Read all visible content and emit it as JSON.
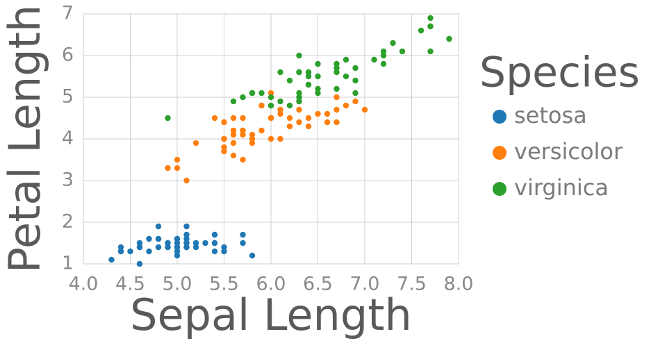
{
  "chart_data": {
    "type": "scatter",
    "x_label": "Sepal Length",
    "y_label": "Petal Length",
    "legend_title": "Species",
    "xlim": [
      4,
      8
    ],
    "ylim": [
      1,
      7
    ],
    "xticks": [
      {
        "value": 4,
        "label": "4.0"
      },
      {
        "value": 4.5,
        "label": "4.5"
      },
      {
        "value": 5,
        "label": "5.0"
      },
      {
        "value": 5.5,
        "label": "5.5"
      },
      {
        "value": 6,
        "label": "6.0"
      },
      {
        "value": 6.5,
        "label": "6.5"
      },
      {
        "value": 7,
        "label": "7.0"
      },
      {
        "value": 7.5,
        "label": "7.5"
      },
      {
        "value": 8,
        "label": "8.0"
      }
    ],
    "yticks": [
      1,
      2,
      3,
      4,
      5,
      6,
      7
    ],
    "grid": true,
    "legend": "right",
    "series": [
      {
        "name": "setosa",
        "color": "#1f77b4",
        "x": [
          5.1,
          4.9,
          4.7,
          4.6,
          5.0,
          5.4,
          4.6,
          5.0,
          4.4,
          4.9,
          5.4,
          4.8,
          4.8,
          4.3,
          5.8,
          5.7,
          5.4,
          5.1,
          5.7,
          5.1,
          5.4,
          5.1,
          4.6,
          5.1,
          4.8,
          5.0,
          5.0,
          5.2,
          5.2,
          4.7,
          4.8,
          5.4,
          5.2,
          5.5,
          4.9,
          5.0,
          5.5,
          4.9,
          4.4,
          5.1,
          5.0,
          4.5,
          4.4,
          5.0,
          5.1,
          4.8,
          5.1,
          4.6,
          5.3,
          5.0
        ],
        "values": [
          1.4,
          1.4,
          1.3,
          1.5,
          1.4,
          1.7,
          1.4,
          1.5,
          1.4,
          1.5,
          1.5,
          1.6,
          1.4,
          1.1,
          1.2,
          1.5,
          1.3,
          1.4,
          1.7,
          1.5,
          1.7,
          1.5,
          1.0,
          1.7,
          1.9,
          1.6,
          1.6,
          1.5,
          1.4,
          1.6,
          1.6,
          1.5,
          1.5,
          1.4,
          1.5,
          1.2,
          1.3,
          1.4,
          1.3,
          1.5,
          1.3,
          1.3,
          1.3,
          1.6,
          1.9,
          1.4,
          1.6,
          1.4,
          1.5,
          1.4
        ]
      },
      {
        "name": "versicolor",
        "color": "#ff7f0e",
        "x": [
          7.0,
          6.4,
          6.9,
          5.5,
          6.5,
          5.7,
          6.3,
          4.9,
          6.6,
          5.2,
          5.0,
          5.9,
          6.0,
          6.1,
          5.6,
          6.7,
          5.6,
          5.8,
          6.2,
          5.6,
          5.9,
          6.1,
          6.3,
          6.1,
          6.4,
          6.6,
          6.8,
          6.7,
          6.0,
          5.7,
          5.5,
          5.5,
          5.8,
          6.0,
          5.4,
          6.0,
          6.7,
          6.3,
          5.6,
          5.5,
          5.5,
          6.1,
          5.8,
          5.0,
          5.6,
          5.7,
          5.7,
          6.2,
          5.1,
          5.7
        ],
        "values": [
          4.7,
          4.5,
          4.9,
          4.0,
          4.6,
          4.5,
          4.7,
          3.3,
          4.6,
          3.9,
          3.5,
          4.2,
          4.0,
          4.7,
          3.6,
          4.4,
          4.5,
          4.1,
          4.5,
          3.9,
          4.8,
          4.0,
          4.9,
          4.7,
          4.3,
          4.4,
          4.8,
          5.0,
          4.5,
          3.5,
          3.8,
          3.7,
          3.9,
          5.1,
          4.5,
          4.5,
          4.7,
          4.4,
          4.1,
          4.0,
          4.4,
          4.6,
          4.0,
          3.3,
          4.2,
          4.2,
          4.2,
          4.3,
          3.0,
          4.1
        ]
      },
      {
        "name": "virginica",
        "color": "#2ca02c",
        "x": [
          6.3,
          5.8,
          7.1,
          6.3,
          6.5,
          7.6,
          4.9,
          7.3,
          6.7,
          7.2,
          6.5,
          6.4,
          6.8,
          5.7,
          5.8,
          6.4,
          6.5,
          7.7,
          7.7,
          6.0,
          6.9,
          5.6,
          7.7,
          6.3,
          6.7,
          7.2,
          6.2,
          6.1,
          6.4,
          7.2,
          7.4,
          7.9,
          6.4,
          6.3,
          6.1,
          7.7,
          6.3,
          6.4,
          6.0,
          6.9,
          6.7,
          6.9,
          5.8,
          6.8,
          6.7,
          6.7,
          6.3,
          6.5,
          6.2,
          5.9
        ],
        "values": [
          6.0,
          5.1,
          5.9,
          5.6,
          5.8,
          6.6,
          4.5,
          6.3,
          5.8,
          6.1,
          5.1,
          5.3,
          5.5,
          5.0,
          5.1,
          5.3,
          5.5,
          6.7,
          6.9,
          5.0,
          5.7,
          4.9,
          6.7,
          4.9,
          5.7,
          6.0,
          4.8,
          4.9,
          5.6,
          5.8,
          6.1,
          6.4,
          5.6,
          5.1,
          5.6,
          6.1,
          5.6,
          5.5,
          4.8,
          5.4,
          5.6,
          5.1,
          5.1,
          5.9,
          5.7,
          5.2,
          5.0,
          5.2,
          5.4,
          5.1
        ]
      }
    ]
  }
}
